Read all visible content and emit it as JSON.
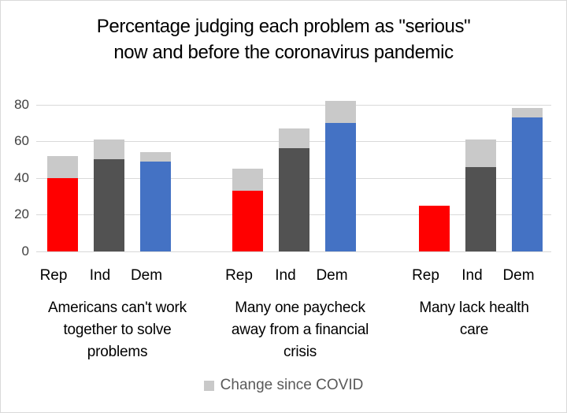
{
  "header": {
    "title_lines": [
      "Percentage judging each problem as \"serious\"",
      "now and before the coronavirus pandemic"
    ]
  },
  "legend": {
    "label": "Change since COVID",
    "swatch_color": "#C9C9C9"
  },
  "chart_data": {
    "type": "bar",
    "bar_style": "stacked",
    "title": "Percentage judging each problem as \"serious\" now and before the coronavirus pandemic",
    "ylim": [
      0,
      80
    ],
    "yticks": [
      0,
      20,
      40,
      60,
      80
    ],
    "grid": true,
    "legend_label": "Change since COVID",
    "legend_position": "bottom",
    "change_color": "#C9C9C9",
    "gridline_color": "#D9D9D9",
    "parties": [
      {
        "name": "Rep",
        "color": "#FF0000"
      },
      {
        "name": "Ind",
        "color": "#525252"
      },
      {
        "name": "Dem",
        "color": "#4472C4"
      }
    ],
    "groups": [
      {
        "label": "Americans can't work together to solve problems",
        "label_lines": [
          "Americans can't work",
          "together to solve",
          "problems"
        ],
        "bars": [
          {
            "party": "Rep",
            "before": 40,
            "now": 52,
            "change": 12
          },
          {
            "party": "Ind",
            "before": 50,
            "now": 61,
            "change": 11
          },
          {
            "party": "Dem",
            "before": 49,
            "now": 54,
            "change": 5
          }
        ]
      },
      {
        "label": "Many one paycheck away from a financial crisis",
        "label_lines": [
          "Many one paycheck",
          "away from a financial",
          "crisis"
        ],
        "bars": [
          {
            "party": "Rep",
            "before": 33,
            "now": 45,
            "change": 12
          },
          {
            "party": "Ind",
            "before": 56,
            "now": 67,
            "change": 11
          },
          {
            "party": "Dem",
            "before": 70,
            "now": 82,
            "change": 12
          }
        ]
      },
      {
        "label": "Many lack health care",
        "label_lines": [
          "Many lack health",
          "care"
        ],
        "bars": [
          {
            "party": "Rep",
            "before": 25,
            "now": 25,
            "change": 0
          },
          {
            "party": "Ind",
            "before": 46,
            "now": 61,
            "change": 15
          },
          {
            "party": "Dem",
            "before": 73,
            "now": 78,
            "change": 5
          }
        ]
      }
    ]
  }
}
